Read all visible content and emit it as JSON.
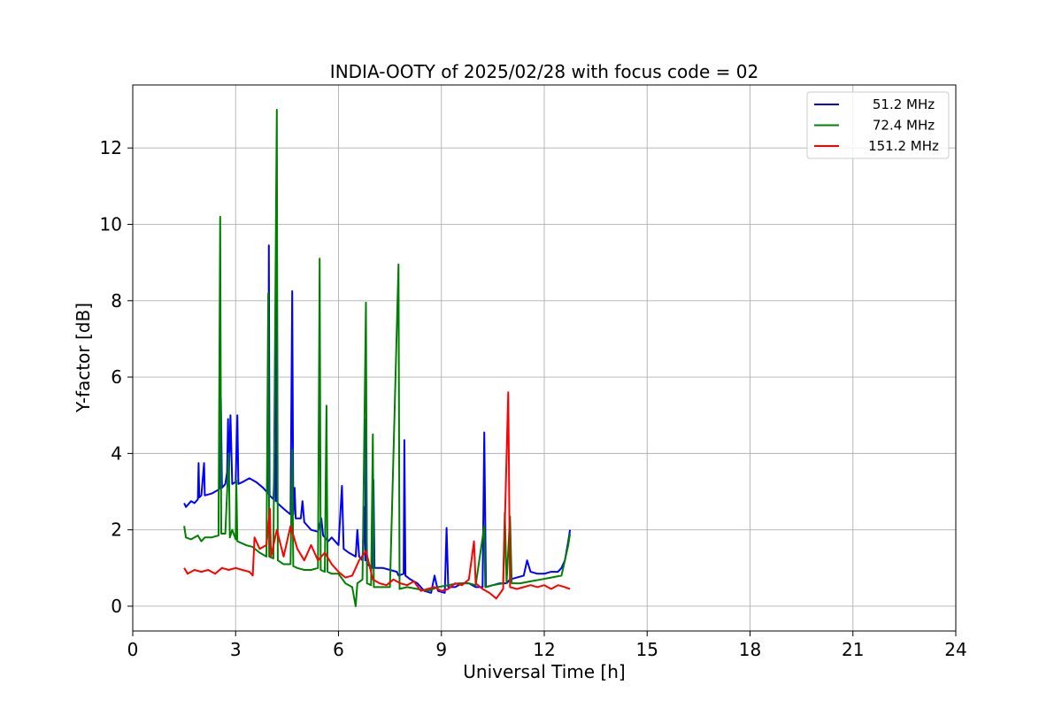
{
  "chart_data": {
    "type": "line",
    "title": "INDIA-OOTY of 2025/02/28 with focus code = 02",
    "xlabel": "Universal Time [h]",
    "ylabel": "Y-factor [dB]",
    "xlim": [
      0,
      24
    ],
    "ylim": [
      -0.65,
      13.65
    ],
    "xticks": [
      0,
      3,
      6,
      9,
      12,
      15,
      18,
      21,
      24
    ],
    "yticks": [
      0,
      2,
      4,
      6,
      8,
      10,
      12
    ],
    "grid": true,
    "legend_position": "top-right",
    "series": [
      {
        "name": "51.2 MHz",
        "color": "#0000ff",
        "points": [
          [
            1.5,
            2.7
          ],
          [
            1.55,
            2.6
          ],
          [
            1.7,
            2.75
          ],
          [
            1.8,
            2.7
          ],
          [
            1.9,
            2.8
          ],
          [
            1.92,
            3.75
          ],
          [
            1.94,
            2.85
          ],
          [
            2.0,
            2.9
          ],
          [
            2.08,
            3.75
          ],
          [
            2.1,
            2.9
          ],
          [
            2.3,
            2.95
          ],
          [
            2.5,
            3.05
          ],
          [
            2.55,
            3.1
          ],
          [
            2.57,
            5.45
          ],
          [
            2.6,
            3.1
          ],
          [
            2.7,
            3.2
          ],
          [
            2.75,
            3.5
          ],
          [
            2.78,
            4.9
          ],
          [
            2.8,
            3.3
          ],
          [
            2.85,
            5.0
          ],
          [
            2.9,
            3.2
          ],
          [
            3.0,
            3.25
          ],
          [
            3.05,
            5.0
          ],
          [
            3.08,
            3.2
          ],
          [
            3.2,
            3.25
          ],
          [
            3.4,
            3.35
          ],
          [
            3.6,
            3.25
          ],
          [
            3.8,
            3.1
          ],
          [
            3.95,
            2.95
          ],
          [
            3.97,
            9.45
          ],
          [
            3.99,
            2.9
          ],
          [
            4.1,
            2.8
          ],
          [
            4.15,
            4.0
          ],
          [
            4.17,
            2.75
          ],
          [
            4.2,
            9.4
          ],
          [
            4.22,
            2.7
          ],
          [
            4.4,
            2.55
          ],
          [
            4.6,
            2.4
          ],
          [
            4.65,
            8.25
          ],
          [
            4.68,
            2.4
          ],
          [
            4.72,
            3.1
          ],
          [
            4.75,
            2.3
          ],
          [
            4.9,
            2.3
          ],
          [
            4.95,
            2.75
          ],
          [
            5.0,
            2.2
          ],
          [
            5.2,
            2.0
          ],
          [
            5.4,
            1.95
          ],
          [
            5.5,
            2.3
          ],
          [
            5.55,
            1.85
          ],
          [
            5.7,
            1.7
          ],
          [
            5.8,
            1.8
          ],
          [
            6.0,
            1.6
          ],
          [
            6.1,
            3.15
          ],
          [
            6.15,
            1.5
          ],
          [
            6.3,
            1.4
          ],
          [
            6.5,
            1.3
          ],
          [
            6.55,
            2.0
          ],
          [
            6.6,
            1.3
          ],
          [
            6.7,
            1.2
          ],
          [
            6.75,
            2.6
          ],
          [
            6.78,
            1.2
          ],
          [
            6.8,
            4.9
          ],
          [
            6.83,
            1.1
          ],
          [
            7.0,
            1.0
          ],
          [
            7.02,
            3.3
          ],
          [
            7.05,
            1.0
          ],
          [
            7.3,
            1.0
          ],
          [
            7.5,
            0.95
          ],
          [
            7.7,
            0.9
          ],
          [
            7.75,
            0.8
          ],
          [
            7.9,
            0.85
          ],
          [
            7.92,
            4.35
          ],
          [
            7.95,
            0.8
          ],
          [
            8.1,
            0.7
          ],
          [
            8.3,
            0.6
          ],
          [
            8.5,
            0.4
          ],
          [
            8.7,
            0.35
          ],
          [
            8.8,
            0.8
          ],
          [
            8.9,
            0.4
          ],
          [
            9.1,
            0.35
          ],
          [
            9.15,
            2.05
          ],
          [
            9.2,
            0.5
          ],
          [
            9.4,
            0.5
          ],
          [
            9.6,
            0.6
          ],
          [
            9.8,
            0.6
          ],
          [
            10.0,
            0.5
          ],
          [
            10.2,
            0.5
          ],
          [
            10.25,
            4.55
          ],
          [
            10.3,
            0.5
          ],
          [
            10.5,
            0.55
          ],
          [
            10.7,
            0.6
          ],
          [
            10.9,
            0.6
          ],
          [
            11.0,
            0.7
          ],
          [
            11.2,
            0.75
          ],
          [
            11.4,
            0.8
          ],
          [
            11.5,
            1.2
          ],
          [
            11.6,
            0.9
          ],
          [
            11.8,
            0.85
          ],
          [
            12.0,
            0.85
          ],
          [
            12.2,
            0.9
          ],
          [
            12.4,
            0.9
          ],
          [
            12.5,
            1.0
          ],
          [
            12.6,
            1.2
          ],
          [
            12.7,
            1.7
          ],
          [
            12.75,
            2.0
          ]
        ]
      },
      {
        "name": "72.4 MHz",
        "color": "#008000",
        "points": [
          [
            1.5,
            2.1
          ],
          [
            1.55,
            1.8
          ],
          [
            1.7,
            1.75
          ],
          [
            1.9,
            1.85
          ],
          [
            2.0,
            1.7
          ],
          [
            2.1,
            1.8
          ],
          [
            2.3,
            1.8
          ],
          [
            2.5,
            1.85
          ],
          [
            2.55,
            10.2
          ],
          [
            2.58,
            1.9
          ],
          [
            2.7,
            1.9
          ],
          [
            2.8,
            4.0
          ],
          [
            2.83,
            1.8
          ],
          [
            2.9,
            2.0
          ],
          [
            3.0,
            1.75
          ],
          [
            3.02,
            3.3
          ],
          [
            3.05,
            1.7
          ],
          [
            3.3,
            1.6
          ],
          [
            3.5,
            1.55
          ],
          [
            3.7,
            1.4
          ],
          [
            3.9,
            1.3
          ],
          [
            3.95,
            8.2
          ],
          [
            3.98,
            1.3
          ],
          [
            4.1,
            1.25
          ],
          [
            4.2,
            13.0
          ],
          [
            4.23,
            1.2
          ],
          [
            4.4,
            1.1
          ],
          [
            4.6,
            1.1
          ],
          [
            4.65,
            4.1
          ],
          [
            4.68,
            1.05
          ],
          [
            4.8,
            1.0
          ],
          [
            5.0,
            0.95
          ],
          [
            5.2,
            0.95
          ],
          [
            5.4,
            1.0
          ],
          [
            5.45,
            9.1
          ],
          [
            5.48,
            0.95
          ],
          [
            5.6,
            0.9
          ],
          [
            5.65,
            5.25
          ],
          [
            5.68,
            0.9
          ],
          [
            5.8,
            0.85
          ],
          [
            6.0,
            0.85
          ],
          [
            6.2,
            0.6
          ],
          [
            6.4,
            0.5
          ],
          [
            6.5,
            0.0
          ],
          [
            6.55,
            0.6
          ],
          [
            6.7,
            0.7
          ],
          [
            6.8,
            7.95
          ],
          [
            6.83,
            0.6
          ],
          [
            6.95,
            0.55
          ],
          [
            7.0,
            4.5
          ],
          [
            7.03,
            0.5
          ],
          [
            7.3,
            0.5
          ],
          [
            7.5,
            0.5
          ],
          [
            7.75,
            8.95
          ],
          [
            7.78,
            0.45
          ],
          [
            8.0,
            0.5
          ],
          [
            8.3,
            0.45
          ],
          [
            8.6,
            0.4
          ],
          [
            8.9,
            0.5
          ],
          [
            9.2,
            0.55
          ],
          [
            9.5,
            0.6
          ],
          [
            9.8,
            0.6
          ],
          [
            10.0,
            0.55
          ],
          [
            10.25,
            2.1
          ],
          [
            10.28,
            0.5
          ],
          [
            10.5,
            0.55
          ],
          [
            10.8,
            0.6
          ],
          [
            10.85,
            2.45
          ],
          [
            10.9,
            0.6
          ],
          [
            11.0,
            2.35
          ],
          [
            11.05,
            0.6
          ],
          [
            11.3,
            0.6
          ],
          [
            11.6,
            0.65
          ],
          [
            11.9,
            0.7
          ],
          [
            12.2,
            0.75
          ],
          [
            12.5,
            0.8
          ],
          [
            12.6,
            1.2
          ],
          [
            12.7,
            1.6
          ],
          [
            12.75,
            1.9
          ]
        ]
      },
      {
        "name": "151.2 MHz",
        "color": "#ff0000",
        "points": [
          [
            1.5,
            1.0
          ],
          [
            1.6,
            0.85
          ],
          [
            1.8,
            0.95
          ],
          [
            2.0,
            0.9
          ],
          [
            2.2,
            0.95
          ],
          [
            2.4,
            0.85
          ],
          [
            2.6,
            1.0
          ],
          [
            2.8,
            0.95
          ],
          [
            3.0,
            1.0
          ],
          [
            3.2,
            0.95
          ],
          [
            3.4,
            0.9
          ],
          [
            3.5,
            0.8
          ],
          [
            3.55,
            1.8
          ],
          [
            3.7,
            1.5
          ],
          [
            3.9,
            1.6
          ],
          [
            4.0,
            2.55
          ],
          [
            4.03,
            1.3
          ],
          [
            4.2,
            2.0
          ],
          [
            4.4,
            1.3
          ],
          [
            4.6,
            2.1
          ],
          [
            4.8,
            1.5
          ],
          [
            5.0,
            1.2
          ],
          [
            5.2,
            1.6
          ],
          [
            5.4,
            1.2
          ],
          [
            5.6,
            1.4
          ],
          [
            5.8,
            1.1
          ],
          [
            6.0,
            0.9
          ],
          [
            6.2,
            0.75
          ],
          [
            6.4,
            0.8
          ],
          [
            6.6,
            1.2
          ],
          [
            6.8,
            1.45
          ],
          [
            7.0,
            0.7
          ],
          [
            7.2,
            0.6
          ],
          [
            7.4,
            0.55
          ],
          [
            7.6,
            0.7
          ],
          [
            7.8,
            0.6
          ],
          [
            8.0,
            0.55
          ],
          [
            8.2,
            0.65
          ],
          [
            8.4,
            0.4
          ],
          [
            8.6,
            0.45
          ],
          [
            8.8,
            0.5
          ],
          [
            9.0,
            0.4
          ],
          [
            9.2,
            0.45
          ],
          [
            9.4,
            0.6
          ],
          [
            9.6,
            0.55
          ],
          [
            9.8,
            0.7
          ],
          [
            9.95,
            1.7
          ],
          [
            10.0,
            0.6
          ],
          [
            10.2,
            0.45
          ],
          [
            10.4,
            0.35
          ],
          [
            10.6,
            0.2
          ],
          [
            10.8,
            0.45
          ],
          [
            10.95,
            5.6
          ],
          [
            11.0,
            0.5
          ],
          [
            11.2,
            0.45
          ],
          [
            11.4,
            0.5
          ],
          [
            11.6,
            0.55
          ],
          [
            11.8,
            0.5
          ],
          [
            12.0,
            0.55
          ],
          [
            12.2,
            0.45
          ],
          [
            12.4,
            0.55
          ],
          [
            12.6,
            0.5
          ],
          [
            12.75,
            0.45
          ]
        ]
      }
    ]
  }
}
